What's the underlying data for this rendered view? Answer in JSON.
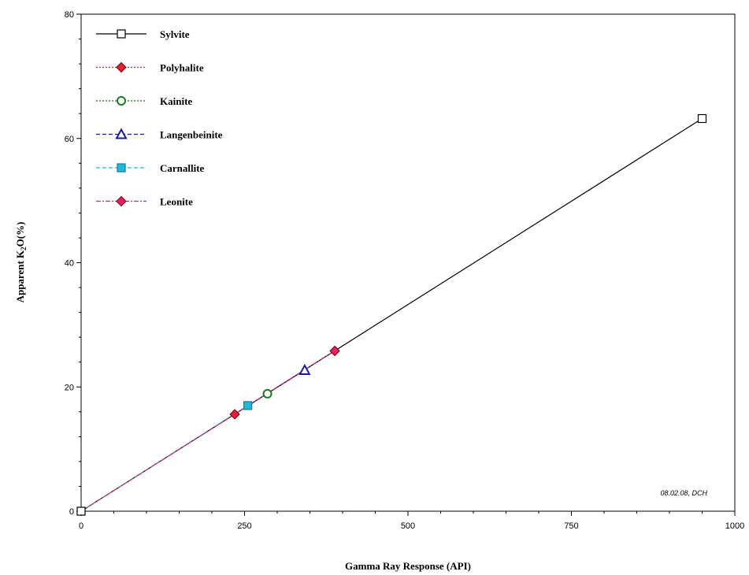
{
  "chart_data": {
    "type": "line",
    "xlabel": "Gamma Ray Response (API)",
    "ylabel_main": "Apparent K",
    "ylabel_sub": "2",
    "ylabel_tail": "O(%)",
    "xlim": [
      0,
      1000
    ],
    "ylim": [
      0,
      80
    ],
    "x_ticks": [
      0,
      250,
      500,
      750,
      1000
    ],
    "y_ticks": [
      0,
      20,
      40,
      60,
      80
    ],
    "x_tick_labels": [
      "0",
      "250",
      "500",
      "750",
      "1000"
    ],
    "y_tick_labels": [
      "0",
      "20",
      "40",
      "60",
      "80"
    ],
    "grid": false,
    "legend_position": "top-left",
    "stamp": "08.02.08, DCH",
    "series": [
      {
        "name": "Sylvite",
        "color": "#000000",
        "marker": "square-open",
        "line": "solid",
        "x": [
          0,
          950
        ],
        "y": [
          0,
          63.2
        ]
      },
      {
        "name": "Polyhalite",
        "color": "#e0203a",
        "marker": "diamond-filled",
        "line": "dotted",
        "x": [
          0,
          235
        ],
        "y": [
          0,
          15.6
        ]
      },
      {
        "name": "Kainite",
        "color": "#1a7a1a",
        "marker": "circle-open",
        "line": "dotted",
        "x": [
          0,
          285
        ],
        "y": [
          0,
          18.9
        ]
      },
      {
        "name": "Langenbeinite",
        "color": "#1a1aa0",
        "marker": "triangle-open",
        "line": "dashed",
        "x": [
          0,
          342
        ],
        "y": [
          0,
          22.7
        ]
      },
      {
        "name": "Carnallite",
        "color": "#22b8d8",
        "marker": "square-filled",
        "line": "dashed",
        "x": [
          0,
          255
        ],
        "y": [
          0,
          17.0
        ]
      },
      {
        "name": "Leonite",
        "color": "#e0206a",
        "marker": "diamond-filled",
        "line": "dashdot",
        "x": [
          0,
          388
        ],
        "y": [
          0,
          25.8
        ]
      }
    ]
  }
}
